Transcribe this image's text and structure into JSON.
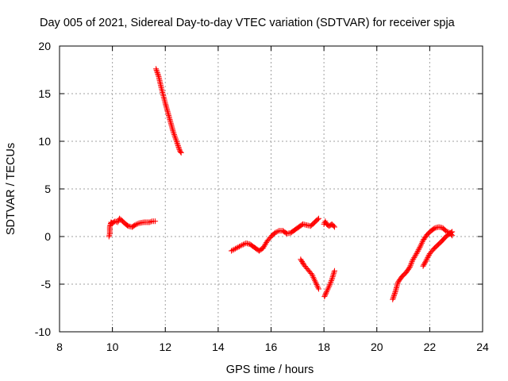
{
  "chart_data": {
    "type": "scatter",
    "title": "Day 005 of 2021, Sidereal Day-to-day VTEC variation (SDTVAR) for receiver spja",
    "xlabel": "GPS time / hours",
    "ylabel": "SDTVAR / TECUs",
    "xlim": [
      8,
      24
    ],
    "ylim": [
      -10,
      20
    ],
    "xticks": [
      "8",
      "10",
      "12",
      "14",
      "16",
      "18",
      "20",
      "22",
      "24"
    ],
    "yticks": [
      "-10",
      "-5",
      "0",
      "5",
      "10",
      "15",
      "20"
    ],
    "grid": true,
    "legend": "none",
    "marker": "+",
    "series_color": "#ff0000",
    "segments": [
      [
        [
          9.87,
          0.0
        ],
        [
          9.9,
          0.3
        ],
        [
          9.9,
          1.0
        ],
        [
          9.95,
          1.5
        ],
        [
          10.0,
          1.4
        ],
        [
          10.1,
          1.6
        ],
        [
          10.2,
          1.5
        ],
        [
          10.27,
          1.9
        ],
        [
          10.35,
          1.7
        ],
        [
          10.5,
          1.3
        ],
        [
          10.6,
          1.1
        ],
        [
          10.75,
          1.0
        ],
        [
          10.85,
          1.2
        ],
        [
          11.0,
          1.4
        ],
        [
          11.2,
          1.5
        ],
        [
          11.4,
          1.5
        ],
        [
          11.5,
          1.6
        ],
        [
          11.62,
          1.6
        ]
      ],
      [
        [
          11.65,
          17.6
        ],
        [
          11.75,
          16.8
        ],
        [
          11.85,
          15.6
        ],
        [
          12.0,
          14.0
        ],
        [
          12.1,
          13.0
        ],
        [
          12.2,
          12.0
        ],
        [
          12.3,
          11.0
        ],
        [
          12.45,
          9.8
        ],
        [
          12.55,
          9.0
        ],
        [
          12.6,
          8.8
        ]
      ],
      [
        [
          14.5,
          -1.5
        ],
        [
          14.7,
          -1.2
        ],
        [
          14.9,
          -0.9
        ],
        [
          15.05,
          -0.7
        ],
        [
          15.2,
          -0.8
        ],
        [
          15.4,
          -1.2
        ],
        [
          15.55,
          -1.5
        ],
        [
          15.7,
          -1.2
        ],
        [
          15.85,
          -0.5
        ],
        [
          16.0,
          0.0
        ],
        [
          16.15,
          0.4
        ],
        [
          16.3,
          0.6
        ],
        [
          16.45,
          0.6
        ],
        [
          16.6,
          0.3
        ],
        [
          16.75,
          0.4
        ],
        [
          16.9,
          0.7
        ],
        [
          17.05,
          1.0
        ],
        [
          17.2,
          1.3
        ],
        [
          17.35,
          1.2
        ],
        [
          17.5,
          1.1
        ],
        [
          17.65,
          1.5
        ],
        [
          17.8,
          1.9
        ]
      ],
      [
        [
          17.12,
          -2.4
        ],
        [
          17.25,
          -3.0
        ],
        [
          17.4,
          -3.5
        ],
        [
          17.55,
          -4.0
        ],
        [
          17.65,
          -4.6
        ],
        [
          17.75,
          -5.2
        ],
        [
          17.8,
          -5.5
        ]
      ],
      [
        [
          18.0,
          1.3
        ],
        [
          18.05,
          1.6
        ],
        [
          18.1,
          1.3
        ],
        [
          18.2,
          1.1
        ],
        [
          18.3,
          1.3
        ],
        [
          18.4,
          1.0
        ]
      ],
      [
        [
          18.02,
          -6.3
        ],
        [
          18.1,
          -5.8
        ],
        [
          18.2,
          -5.2
        ],
        [
          18.3,
          -4.5
        ],
        [
          18.4,
          -3.6
        ]
      ],
      [
        [
          20.6,
          -6.6
        ],
        [
          20.7,
          -5.8
        ],
        [
          20.8,
          -4.8
        ],
        [
          20.95,
          -4.2
        ],
        [
          21.1,
          -3.8
        ],
        [
          21.25,
          -3.2
        ],
        [
          21.35,
          -2.5
        ],
        [
          21.5,
          -1.8
        ],
        [
          21.65,
          -1.0
        ],
        [
          21.75,
          -0.4
        ],
        [
          21.9,
          0.2
        ],
        [
          22.05,
          0.6
        ],
        [
          22.2,
          0.9
        ],
        [
          22.35,
          1.0
        ],
        [
          22.5,
          0.9
        ],
        [
          22.6,
          0.6
        ],
        [
          22.75,
          0.4
        ],
        [
          22.85,
          0.1
        ]
      ],
      [
        [
          21.75,
          -3.1
        ],
        [
          21.85,
          -2.6
        ],
        [
          22.0,
          -1.8
        ],
        [
          22.15,
          -1.3
        ],
        [
          22.3,
          -0.9
        ],
        [
          22.45,
          -0.5
        ],
        [
          22.55,
          -0.2
        ],
        [
          22.65,
          0.1
        ],
        [
          22.75,
          0.3
        ],
        [
          22.85,
          0.5
        ]
      ]
    ]
  }
}
